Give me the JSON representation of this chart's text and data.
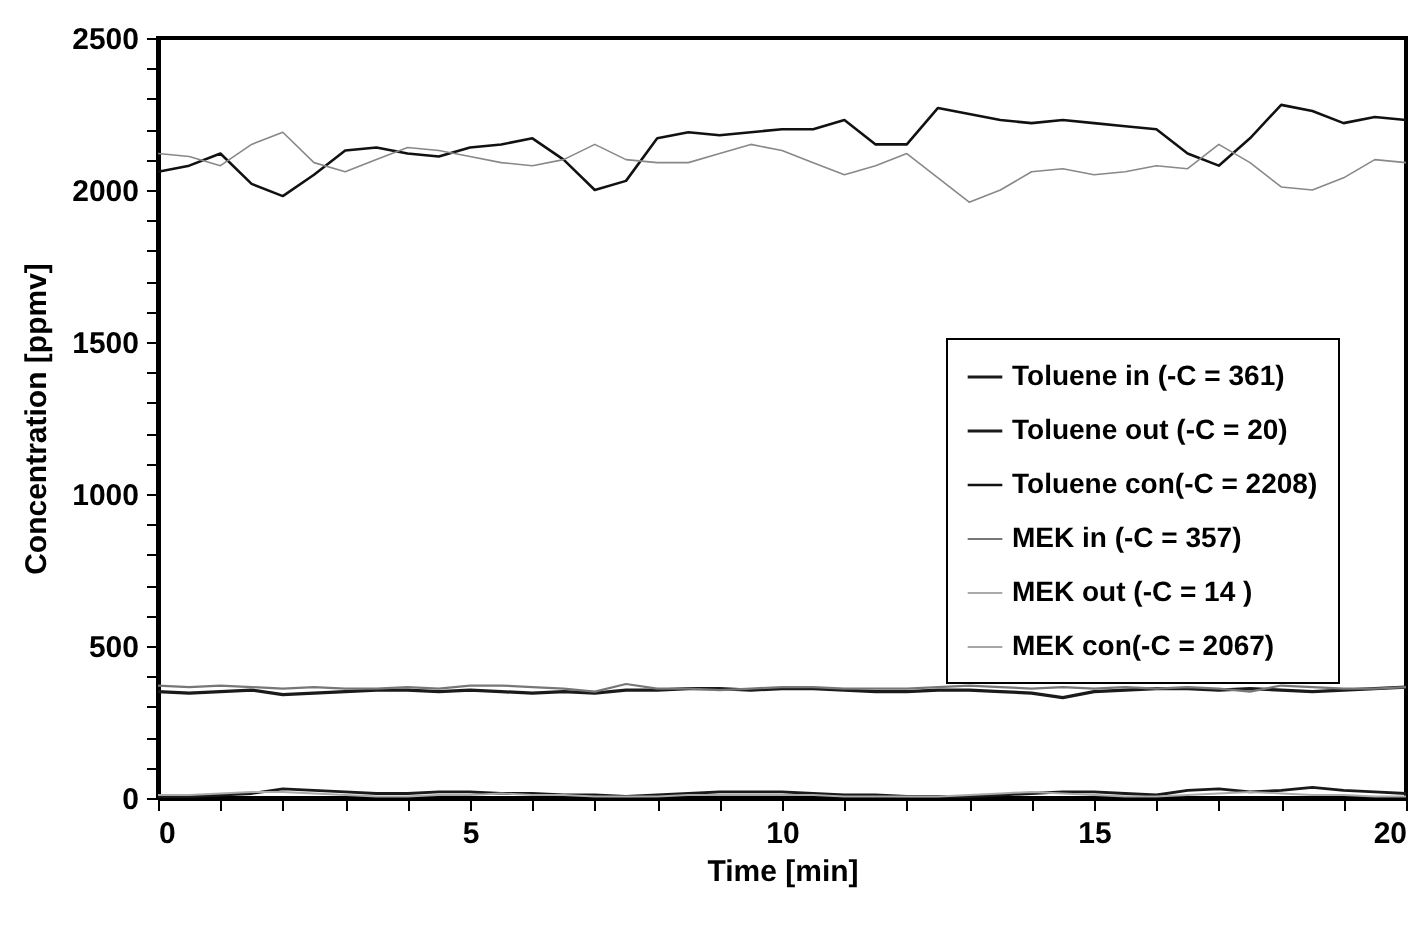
{
  "chart_data": {
    "type": "line",
    "xlabel": "Time [min]",
    "ylabel": "Concentration [ppmv]",
    "x": [
      0,
      0.5,
      1,
      1.5,
      2,
      2.5,
      3,
      3.5,
      4,
      4.5,
      5,
      5.5,
      6,
      6.5,
      7,
      7.5,
      8,
      8.5,
      9,
      9.5,
      10,
      10.5,
      11,
      11.5,
      12,
      12.5,
      13,
      13.5,
      14,
      14.5,
      15,
      15.5,
      16,
      16.5,
      17,
      17.5,
      18,
      18.5,
      19,
      19.5,
      20
    ],
    "xlim": [
      0,
      20
    ],
    "ylim": [
      0,
      2500
    ],
    "xticks": [
      0,
      {
        "value": 1,
        "label": null
      },
      {
        "value": 2,
        "label": null
      },
      {
        "value": 3,
        "label": null
      },
      {
        "value": 4,
        "label": null
      },
      5,
      {
        "value": 6,
        "label": null
      },
      {
        "value": 7,
        "label": null
      },
      {
        "value": 8,
        "label": null
      },
      {
        "value": 9,
        "label": null
      },
      10,
      {
        "value": 11,
        "label": null
      },
      {
        "value": 12,
        "label": null
      },
      {
        "value": 13,
        "label": null
      },
      {
        "value": 14,
        "label": null
      },
      15,
      {
        "value": 16,
        "label": null
      },
      {
        "value": 17,
        "label": null
      },
      {
        "value": 18,
        "label": null
      },
      {
        "value": 19,
        "label": null
      },
      20
    ],
    "yticks": [
      0,
      {
        "value": 100,
        "label": null
      },
      {
        "value": 200,
        "label": null
      },
      {
        "value": 300,
        "label": null
      },
      {
        "value": 400,
        "label": null
      },
      500,
      {
        "value": 600,
        "label": null
      },
      {
        "value": 700,
        "label": null
      },
      {
        "value": 800,
        "label": null
      },
      {
        "value": 900,
        "label": null
      },
      1000,
      {
        "value": 1100,
        "label": null
      },
      {
        "value": 1200,
        "label": null
      },
      {
        "value": 1300,
        "label": null
      },
      {
        "value": 1400,
        "label": null
      },
      1500,
      {
        "value": 1600,
        "label": null
      },
      {
        "value": 1700,
        "label": null
      },
      {
        "value": 1800,
        "label": null
      },
      {
        "value": 1900,
        "label": null
      },
      2000,
      {
        "value": 2100,
        "label": null
      },
      {
        "value": 2200,
        "label": null
      },
      {
        "value": 2300,
        "label": null
      },
      {
        "value": 2400,
        "label": null
      },
      2500
    ],
    "grid": false,
    "legend": "right",
    "marker": "none",
    "line_style": "solid",
    "series": [
      {
        "name": "Toluene in (-C = 361)",
        "color": "#1a1a1a",
        "values": [
          350,
          345,
          350,
          355,
          340,
          345,
          350,
          355,
          355,
          350,
          355,
          350,
          345,
          350,
          345,
          355,
          355,
          360,
          360,
          355,
          360,
          360,
          355,
          350,
          350,
          355,
          355,
          350,
          345,
          330,
          350,
          355,
          360,
          360,
          355,
          360,
          355,
          350,
          355,
          360,
          365
        ]
      },
      {
        "name": "Toluene out (-C = 20)",
        "color": "#1a1a1a",
        "values": [
          5,
          5,
          10,
          15,
          30,
          25,
          20,
          15,
          15,
          20,
          20,
          15,
          15,
          10,
          10,
          5,
          10,
          15,
          20,
          20,
          20,
          15,
          10,
          10,
          5,
          5,
          5,
          10,
          15,
          20,
          20,
          15,
          10,
          25,
          30,
          20,
          25,
          35,
          25,
          20,
          15
        ]
      },
      {
        "name": "Toluene con(-C = 2208)",
        "color": "#111111",
        "values": [
          2060,
          2080,
          2120,
          2020,
          1980,
          2050,
          2130,
          2140,
          2120,
          2110,
          2140,
          2150,
          2170,
          2100,
          2000,
          2030,
          2170,
          2190,
          2180,
          2190,
          2200,
          2200,
          2230,
          2150,
          2150,
          2270,
          2250,
          2230,
          2220,
          2230,
          2220,
          2210,
          2200,
          2120,
          2080,
          2170,
          2280,
          2260,
          2220,
          2240,
          2230
        ]
      },
      {
        "name": "MEK in (-C = 357)",
        "color": "#777777",
        "values": [
          370,
          365,
          370,
          365,
          360,
          365,
          360,
          360,
          365,
          360,
          370,
          370,
          365,
          360,
          350,
          375,
          360,
          360,
          355,
          360,
          365,
          365,
          360,
          360,
          360,
          365,
          370,
          365,
          360,
          365,
          360,
          365,
          360,
          365,
          360,
          350,
          370,
          365,
          360,
          360,
          365
        ]
      },
      {
        "name": "MEK out (-C = 14 )",
        "color": "#aaaaaa",
        "values": [
          10,
          10,
          15,
          20,
          20,
          15,
          10,
          5,
          5,
          10,
          10,
          15,
          10,
          10,
          5,
          5,
          5,
          10,
          10,
          10,
          10,
          10,
          5,
          5,
          5,
          5,
          10,
          15,
          20,
          15,
          10,
          5,
          5,
          10,
          15,
          20,
          15,
          10,
          10,
          5,
          5
        ]
      },
      {
        "name": "MEK con(-C =  2067)",
        "color": "#888888",
        "values": [
          2120,
          2110,
          2080,
          2150,
          2190,
          2090,
          2060,
          2100,
          2140,
          2130,
          2110,
          2090,
          2080,
          2100,
          2150,
          2100,
          2090,
          2090,
          2120,
          2150,
          2130,
          2090,
          2050,
          2080,
          2120,
          2040,
          1960,
          2000,
          2060,
          2070,
          2050,
          2060,
          2080,
          2070,
          2150,
          2090,
          2010,
          2000,
          2040,
          2100,
          2090
        ]
      }
    ]
  }
}
